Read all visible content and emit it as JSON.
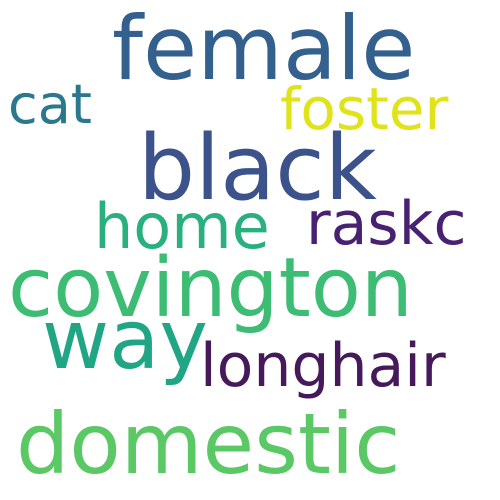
{
  "words": [
    {
      "text": "female",
      "color": "#34608d"
    },
    {
      "text": "cat",
      "color": "#2a788e"
    },
    {
      "text": "foster",
      "color": "#e0e31a"
    },
    {
      "text": "black",
      "color": "#3b528b"
    },
    {
      "text": "home",
      "color": "#2ab07f"
    },
    {
      "text": "raskc",
      "color": "#482173"
    },
    {
      "text": "covington",
      "color": "#3dbc74"
    },
    {
      "text": "way",
      "color": "#21a685"
    },
    {
      "text": "longhair",
      "color": "#46195a"
    },
    {
      "text": "domestic",
      "color": "#5ac864"
    }
  ]
}
